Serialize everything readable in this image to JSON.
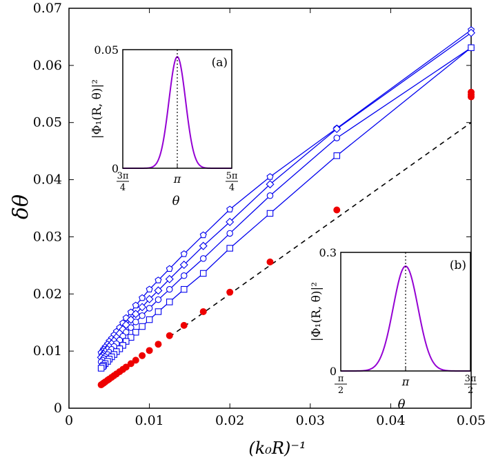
{
  "chart_data": [
    {
      "type": "line",
      "title": "",
      "xlabel": "(k₀R)⁻¹",
      "ylabel": "δθ",
      "xlim": [
        0,
        0.05
      ],
      "ylim": [
        0,
        0.07
      ],
      "xticks": [
        {
          "v": 0,
          "label": "0"
        },
        {
          "v": 0.01,
          "label": "0.01"
        },
        {
          "v": 0.02,
          "label": "0.02"
        },
        {
          "v": 0.03,
          "label": "0.03"
        },
        {
          "v": 0.04,
          "label": "0.04"
        },
        {
          "v": 0.05,
          "label": "0.05"
        }
      ],
      "yticks": [
        {
          "v": 0,
          "label": "0"
        },
        {
          "v": 0.01,
          "label": "0.01"
        },
        {
          "v": 0.02,
          "label": "0.02"
        },
        {
          "v": 0.03,
          "label": "0.03"
        },
        {
          "v": 0.04,
          "label": "0.04"
        },
        {
          "v": 0.05,
          "label": "0.05"
        },
        {
          "v": 0.06,
          "label": "0.06"
        },
        {
          "v": 0.07,
          "label": "0.07"
        }
      ],
      "grid": false,
      "colors": {
        "series": "#0000ee",
        "points": "#ee0000",
        "dashed": "#000000"
      },
      "x": [
        0.05,
        0.0333,
        0.025,
        0.02,
        0.0167,
        0.0143,
        0.0125,
        0.0111,
        0.01,
        0.0091,
        0.0083,
        0.0077,
        0.0071,
        0.0067,
        0.0063,
        0.0059,
        0.0056,
        0.0053,
        0.005,
        0.0048,
        0.0045,
        0.0043,
        0.0042,
        0.004
      ],
      "series": [
        {
          "marker": "pentagon",
          "values": [
            0.0662,
            0.049,
            0.0405,
            0.0348,
            0.0303,
            0.027,
            0.0244,
            0.0224,
            0.0208,
            0.0193,
            0.018,
            0.0168,
            0.0158,
            0.0149,
            0.0141,
            0.0134,
            0.0128,
            0.0122,
            0.0117,
            0.0112,
            0.0107,
            0.0103,
            0.01,
            0.0097
          ]
        },
        {
          "marker": "diamond",
          "values": [
            0.0657,
            0.0489,
            0.0392,
            0.0326,
            0.0284,
            0.0251,
            0.0226,
            0.0206,
            0.0191,
            0.0177,
            0.0165,
            0.0155,
            0.0146,
            0.0138,
            0.0131,
            0.0124,
            0.0118,
            0.0113,
            0.0108,
            0.0103,
            0.0099,
            0.0095,
            0.0092,
            0.0089
          ]
        },
        {
          "marker": "circle",
          "values": [
            0.0631,
            0.0473,
            0.0372,
            0.0306,
            0.0262,
            0.0232,
            0.0208,
            0.019,
            0.0175,
            0.0162,
            0.0151,
            0.0141,
            0.0133,
            0.0126,
            0.0119,
            0.0113,
            0.0108,
            0.0103,
            0.0098,
            0.0094,
            0.009,
            0.0087,
            0.0084,
            0.0081
          ]
        },
        {
          "marker": "square",
          "values": [
            0.0631,
            0.0442,
            0.0341,
            0.028,
            0.0236,
            0.0208,
            0.0186,
            0.0169,
            0.0155,
            0.0143,
            0.0133,
            0.0124,
            0.0117,
            0.011,
            0.0104,
            0.0099,
            0.0094,
            0.009,
            0.0086,
            0.0082,
            0.0078,
            0.0075,
            0.0073,
            0.007
          ]
        }
      ],
      "points": {
        "x": [
          0.05,
          0.05,
          0.05,
          0.0333,
          0.025,
          0.02,
          0.0167,
          0.0143,
          0.0125,
          0.0111,
          0.01,
          0.0091,
          0.0083,
          0.0077,
          0.0071,
          0.0067,
          0.0063,
          0.0059,
          0.0056,
          0.0053,
          0.005,
          0.0048,
          0.0045,
          0.0043,
          0.0042,
          0.004
        ],
        "y": [
          0.0553,
          0.0549,
          0.0545,
          0.0347,
          0.0256,
          0.0203,
          0.0169,
          0.0145,
          0.0127,
          0.0112,
          0.0101,
          0.0092,
          0.0084,
          0.0078,
          0.0072,
          0.0068,
          0.0064,
          0.006,
          0.0057,
          0.0054,
          0.0051,
          0.0049,
          0.0046,
          0.0044,
          0.0043,
          0.0041
        ]
      },
      "reference_line": {
        "style": "dashed",
        "x": [
          0.0125,
          0.05
        ],
        "y": [
          0.0125,
          0.05
        ]
      }
    },
    {
      "type": "line",
      "panel_label": "(a)",
      "xlabel": "θ",
      "ylabel": "|Φ₁(R, θ)|²",
      "xlim": [
        2.3562,
        3.927
      ],
      "ylim": [
        0,
        0.05
      ],
      "xticks": [
        {
          "v": 2.3562,
          "num": "3π",
          "den": "4"
        },
        {
          "v": 3.1416,
          "label": "π"
        },
        {
          "v": 3.927,
          "num": "5π",
          "den": "4"
        }
      ],
      "yticks": [
        {
          "v": 0,
          "label": "0"
        },
        {
          "v": 0.05,
          "label": "0.05"
        }
      ],
      "curve": {
        "color": "#9400d3",
        "center": 3.1416,
        "peak": 0.047,
        "sigma": 0.12
      },
      "marker_line": {
        "x": 3.1416,
        "style": "dotted"
      }
    },
    {
      "type": "line",
      "panel_label": "(b)",
      "xlabel": "θ",
      "ylabel": "|Φ₁(R, θ)|²",
      "xlim": [
        1.5708,
        4.7124
      ],
      "ylim": [
        0,
        0.3
      ],
      "xticks": [
        {
          "v": 1.5708,
          "num": "π",
          "den": "2"
        },
        {
          "v": 3.1416,
          "label": "π"
        },
        {
          "v": 4.7124,
          "num": "3π",
          "den": "2"
        }
      ],
      "yticks": [
        {
          "v": 0,
          "label": "0"
        },
        {
          "v": 0.3,
          "label": "0.3"
        }
      ],
      "curve": {
        "color": "#9400d3",
        "center": 3.1416,
        "peak": 0.265,
        "sigma": 0.3
      },
      "marker_line": {
        "x": 3.1416,
        "style": "dotted"
      }
    }
  ]
}
